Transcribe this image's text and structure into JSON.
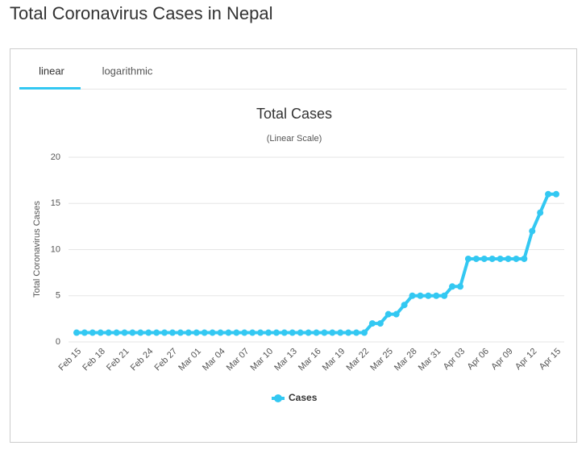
{
  "heading": "Total Coronavirus Cases in Nepal",
  "tabs": [
    "linear",
    "logarithmic"
  ],
  "chart_data": {
    "type": "line",
    "title": "Total Cases",
    "subtitle": "(Linear Scale)",
    "ylabel": "Total Coronavirus Cases",
    "categories": [
      "Feb 15",
      null,
      null,
      "Feb 18",
      null,
      null,
      "Feb 21",
      null,
      null,
      "Feb 24",
      null,
      null,
      "Feb 27",
      null,
      null,
      "Mar 01",
      null,
      null,
      "Mar 04",
      null,
      null,
      "Mar 07",
      null,
      null,
      "Mar 10",
      null,
      null,
      "Mar 13",
      null,
      null,
      "Mar 16",
      null,
      null,
      "Mar 19",
      null,
      null,
      "Mar 22",
      null,
      null,
      "Mar 25",
      null,
      null,
      "Mar 28",
      null,
      null,
      "Mar 31",
      null,
      null,
      "Apr 03",
      null,
      null,
      "Apr 06",
      null,
      null,
      "Apr 09",
      null,
      null,
      "Apr 12",
      null,
      null,
      "Apr 15"
    ],
    "series": [
      {
        "name": "Cases",
        "color": "#33c8f2",
        "values": [
          1,
          1,
          1,
          1,
          1,
          1,
          1,
          1,
          1,
          1,
          1,
          1,
          1,
          1,
          1,
          1,
          1,
          1,
          1,
          1,
          1,
          1,
          1,
          1,
          1,
          1,
          1,
          1,
          1,
          1,
          1,
          1,
          1,
          1,
          1,
          1,
          1,
          2,
          2,
          3,
          3,
          4,
          5,
          5,
          5,
          5,
          5,
          6,
          6,
          9,
          9,
          9,
          9,
          9,
          9,
          9,
          9,
          12,
          14,
          16,
          16
        ]
      }
    ],
    "ylim": [
      0,
      20
    ],
    "yticks": [
      0,
      5,
      10,
      15,
      20
    ],
    "grid": true,
    "legend": "bottom"
  }
}
